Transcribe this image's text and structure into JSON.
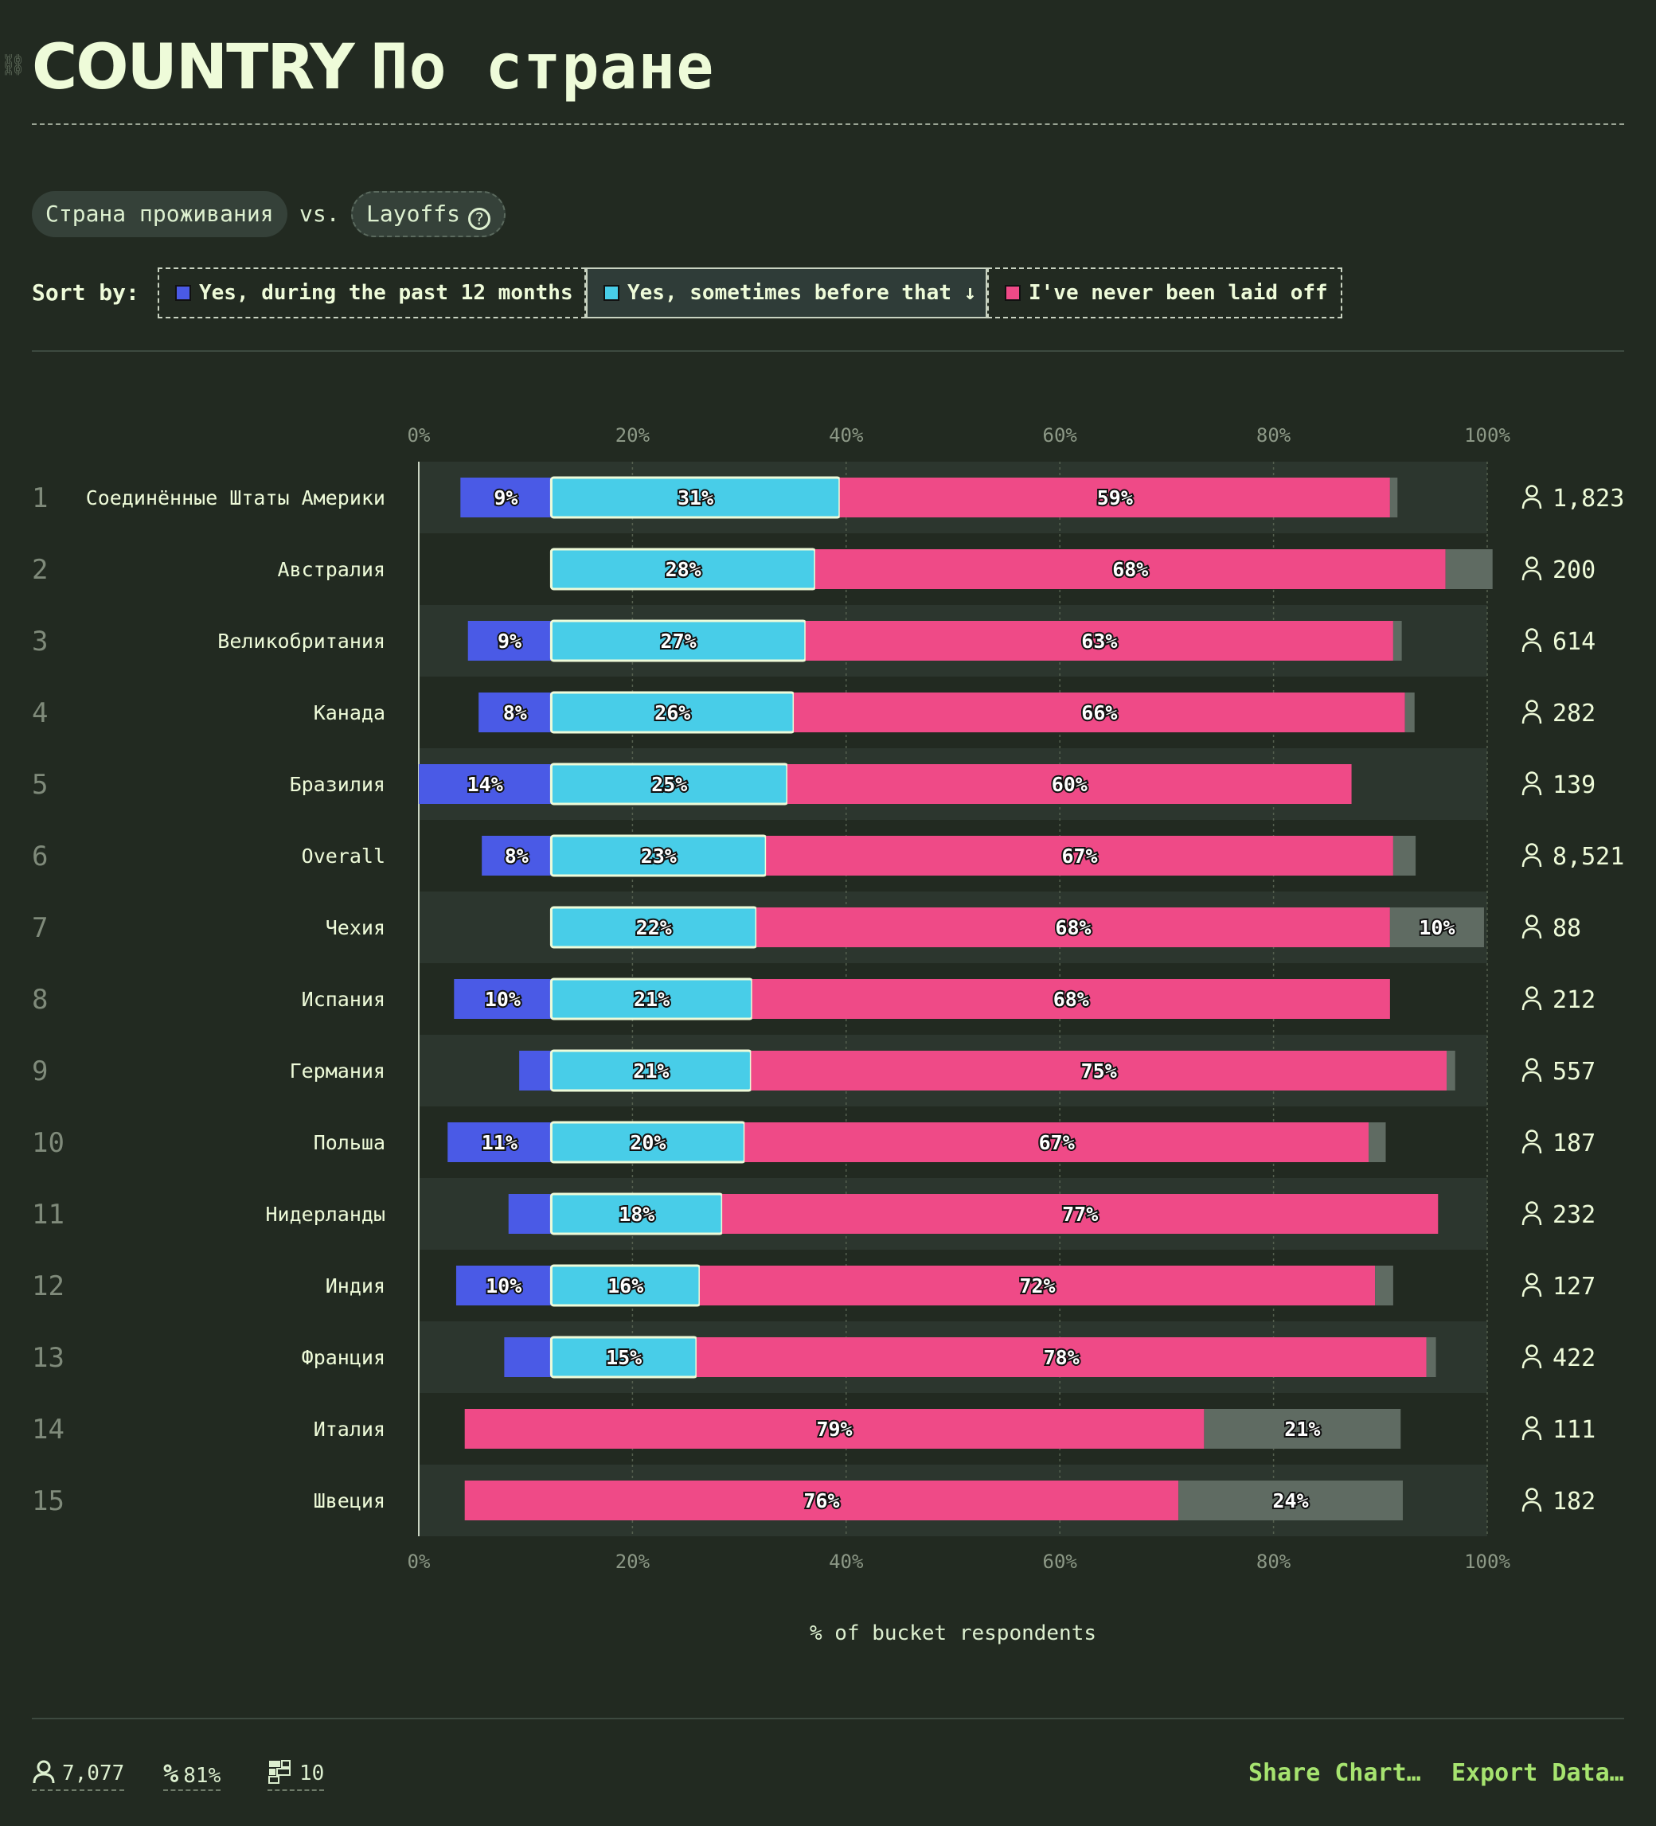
{
  "header": {
    "title_prefix": "COUNTRY",
    "title_suffix": "По стране",
    "pill_left": "Страна проживания",
    "vs": "vs.",
    "pill_right": "Layoffs",
    "sort_label": "Sort by:",
    "sort_options": [
      {
        "label": "Yes, during the past 12 months",
        "color": "#4a5ae6",
        "active": false
      },
      {
        "label": "Yes, sometimes before that ↓",
        "color": "#48cde8",
        "active": true
      },
      {
        "label": "I've never been laid off",
        "color": "#ef4a87",
        "active": false
      }
    ]
  },
  "colors": {
    "past12": "#4a5ae6",
    "before": "#48cde8",
    "never": "#ef4a87",
    "other": "#5f6b62"
  },
  "chart_data": {
    "type": "bar",
    "orientation": "horizontal-stacked",
    "xlabel": "% of bucket respondents",
    "xlim": [
      0,
      100
    ],
    "x_ticks": [
      "0%",
      "20%",
      "40%",
      "60%",
      "80%",
      "100%"
    ],
    "series": [
      {
        "name": "Yes, during the past 12 months"
      },
      {
        "name": "Yes, sometimes before that"
      },
      {
        "name": "I've never been laid off"
      }
    ],
    "rows": [
      {
        "rank": "1",
        "label": "Соединённые Штаты Америки",
        "respondents": "1,823",
        "past12": 8.5,
        "before": 27,
        "never": 51.5,
        "other": 0.7,
        "labels": [
          "9%",
          "31%",
          "59%",
          ""
        ]
      },
      {
        "rank": "2",
        "label": "Австралия",
        "respondents": "200",
        "past12": 0,
        "before": 24.7,
        "never": 59,
        "other": 4.4,
        "labels": [
          "",
          "28%",
          "68%",
          ""
        ]
      },
      {
        "rank": "3",
        "label": "Великобритания",
        "respondents": "614",
        "past12": 7.8,
        "before": 23.8,
        "never": 55,
        "other": 0.8,
        "labels": [
          "9%",
          "27%",
          "63%",
          ""
        ]
      },
      {
        "rank": "4",
        "label": "Канада",
        "respondents": "282",
        "past12": 6.8,
        "before": 22.7,
        "never": 57.2,
        "other": 0.9,
        "labels": [
          "8%",
          "26%",
          "66%",
          ""
        ]
      },
      {
        "rank": "5",
        "label": "Бразилия",
        "respondents": "139",
        "past12": 12.4,
        "before": 22.1,
        "never": 52.8,
        "other": 0,
        "labels": [
          "14%",
          "25%",
          "60%",
          ""
        ]
      },
      {
        "rank": "6",
        "label": "Overall",
        "respondents": "8,521",
        "past12": 6.5,
        "before": 20.1,
        "never": 58.7,
        "other": 2.1,
        "labels": [
          "8%",
          "23%",
          "67%",
          ""
        ]
      },
      {
        "rank": "7",
        "label": "Чехия",
        "respondents": "88",
        "past12": 0,
        "before": 19.2,
        "never": 59.3,
        "other": 8.8,
        "labels": [
          "",
          "22%",
          "68%",
          "10%"
        ]
      },
      {
        "rank": "8",
        "label": "Испания",
        "respondents": "212",
        "past12": 9.1,
        "before": 18.8,
        "never": 59.7,
        "other": 0,
        "labels": [
          "10%",
          "21%",
          "68%",
          ""
        ]
      },
      {
        "rank": "9",
        "label": "Германия",
        "respondents": "557",
        "past12": 3,
        "before": 18.7,
        "never": 65.1,
        "other": 0.8,
        "labels": [
          "",
          "21%",
          "75%",
          ""
        ]
      },
      {
        "rank": "10",
        "label": "Польша",
        "respondents": "187",
        "past12": 9.7,
        "before": 18.1,
        "never": 58.4,
        "other": 1.6,
        "labels": [
          "11%",
          "20%",
          "67%",
          ""
        ]
      },
      {
        "rank": "11",
        "label": "Нидерланды",
        "respondents": "232",
        "past12": 4,
        "before": 16,
        "never": 67,
        "other": 0,
        "labels": [
          "",
          "18%",
          "77%",
          ""
        ]
      },
      {
        "rank": "12",
        "label": "Индия",
        "respondents": "127",
        "past12": 8.9,
        "before": 13.9,
        "never": 63.2,
        "other": 1.7,
        "labels": [
          "10%",
          "16%",
          "72%",
          ""
        ]
      },
      {
        "rank": "13",
        "label": "Франция",
        "respondents": "422",
        "past12": 4.4,
        "before": 13.6,
        "never": 68.3,
        "other": 0.9,
        "labels": [
          "",
          "15%",
          "78%",
          ""
        ]
      },
      {
        "rank": "14",
        "label": "Италия",
        "respondents": "111",
        "past12": 0,
        "before": 0,
        "never": 69.2,
        "other": 18.4,
        "labels": [
          "",
          "",
          "79%",
          "21%"
        ]
      },
      {
        "rank": "15",
        "label": "Швеция",
        "respondents": "182",
        "past12": 0,
        "before": 0,
        "never": 66.8,
        "other": 21,
        "labels": [
          "",
          "",
          "76%",
          "24%"
        ]
      }
    ]
  },
  "footer": {
    "respondents": "7,077",
    "percent": "81%",
    "buckets": "10",
    "share_label": "Share Chart…",
    "export_label": "Export Data…"
  }
}
